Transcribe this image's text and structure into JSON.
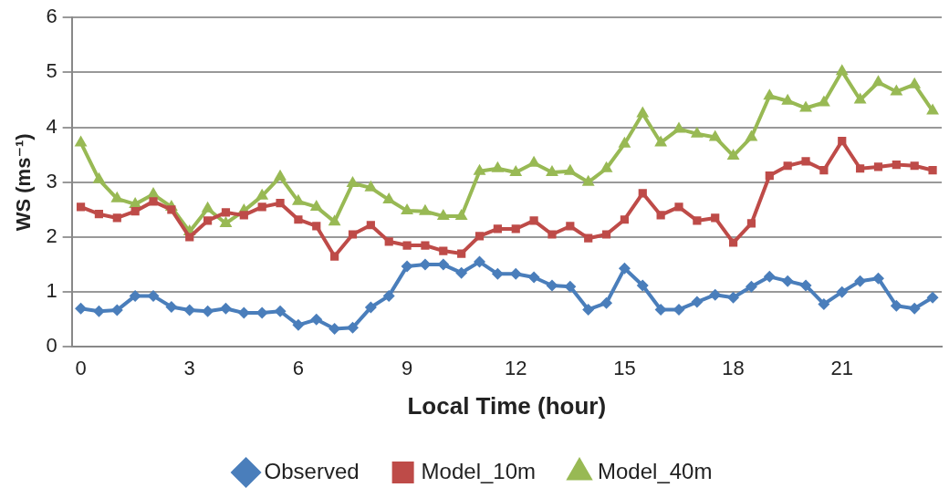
{
  "chart_data": {
    "type": "line",
    "xlabel": "Local Time (hour)",
    "ylabel": "WS (ms⁻¹)",
    "categories": [
      "0",
      null,
      null,
      null,
      null,
      null,
      "3",
      null,
      null,
      null,
      null,
      null,
      "6",
      null,
      null,
      null,
      null,
      null,
      "9",
      null,
      null,
      null,
      null,
      null,
      "12",
      null,
      null,
      null,
      null,
      null,
      "15",
      null,
      null,
      null,
      null,
      null,
      "18",
      null,
      null,
      null,
      null,
      null,
      "21",
      null,
      null,
      null,
      null,
      null
    ],
    "series": [
      {
        "name": "Observed",
        "color": "#4a7ebb",
        "marker": "diamond",
        "values": [
          0.7,
          0.65,
          0.67,
          0.93,
          0.93,
          0.73,
          0.67,
          0.65,
          0.7,
          0.62,
          0.62,
          0.65,
          0.4,
          0.5,
          0.33,
          0.35,
          0.72,
          0.93,
          1.47,
          1.5,
          1.5,
          1.35,
          1.55,
          1.33,
          1.33,
          1.27,
          1.12,
          1.1,
          0.68,
          0.8,
          1.43,
          1.12,
          0.68,
          0.68,
          0.82,
          0.95,
          0.9,
          1.1,
          1.28,
          1.2,
          1.12,
          0.78,
          1.0,
          1.2,
          1.25,
          0.75,
          0.7,
          0.9
        ]
      },
      {
        "name": "Model_10m",
        "color": "#be4b48",
        "marker": "square",
        "values": [
          2.55,
          2.42,
          2.35,
          2.47,
          2.65,
          2.5,
          2.0,
          2.3,
          2.45,
          2.4,
          2.55,
          2.62,
          2.32,
          2.2,
          1.65,
          2.05,
          2.22,
          1.92,
          1.85,
          1.85,
          1.75,
          1.7,
          2.02,
          2.15,
          2.15,
          2.3,
          2.05,
          2.2,
          1.98,
          2.05,
          2.32,
          2.8,
          2.4,
          2.55,
          2.3,
          2.35,
          1.9,
          2.25,
          3.12,
          3.3,
          3.38,
          3.22,
          3.75,
          3.25,
          3.28,
          3.32,
          3.3,
          3.22
        ]
      },
      {
        "name": "Model_40m",
        "color": "#98b954",
        "marker": "triangle",
        "values": [
          3.72,
          3.05,
          2.7,
          2.6,
          2.78,
          2.55,
          2.1,
          2.52,
          2.25,
          2.48,
          2.75,
          3.1,
          2.65,
          2.55,
          2.28,
          2.98,
          2.9,
          2.68,
          2.48,
          2.47,
          2.38,
          2.38,
          3.2,
          3.25,
          3.18,
          3.35,
          3.18,
          3.2,
          3.0,
          3.25,
          3.7,
          4.25,
          3.72,
          3.97,
          3.88,
          3.82,
          3.48,
          3.82,
          4.57,
          4.48,
          4.35,
          4.45,
          5.02,
          4.5,
          4.82,
          4.65,
          4.78,
          4.3
        ]
      }
    ],
    "ylim": [
      0,
      6
    ],
    "yticks": [
      0,
      1,
      2,
      3,
      4,
      5,
      6
    ],
    "grid": "y",
    "legend": "bottom",
    "line_style": "solid"
  }
}
